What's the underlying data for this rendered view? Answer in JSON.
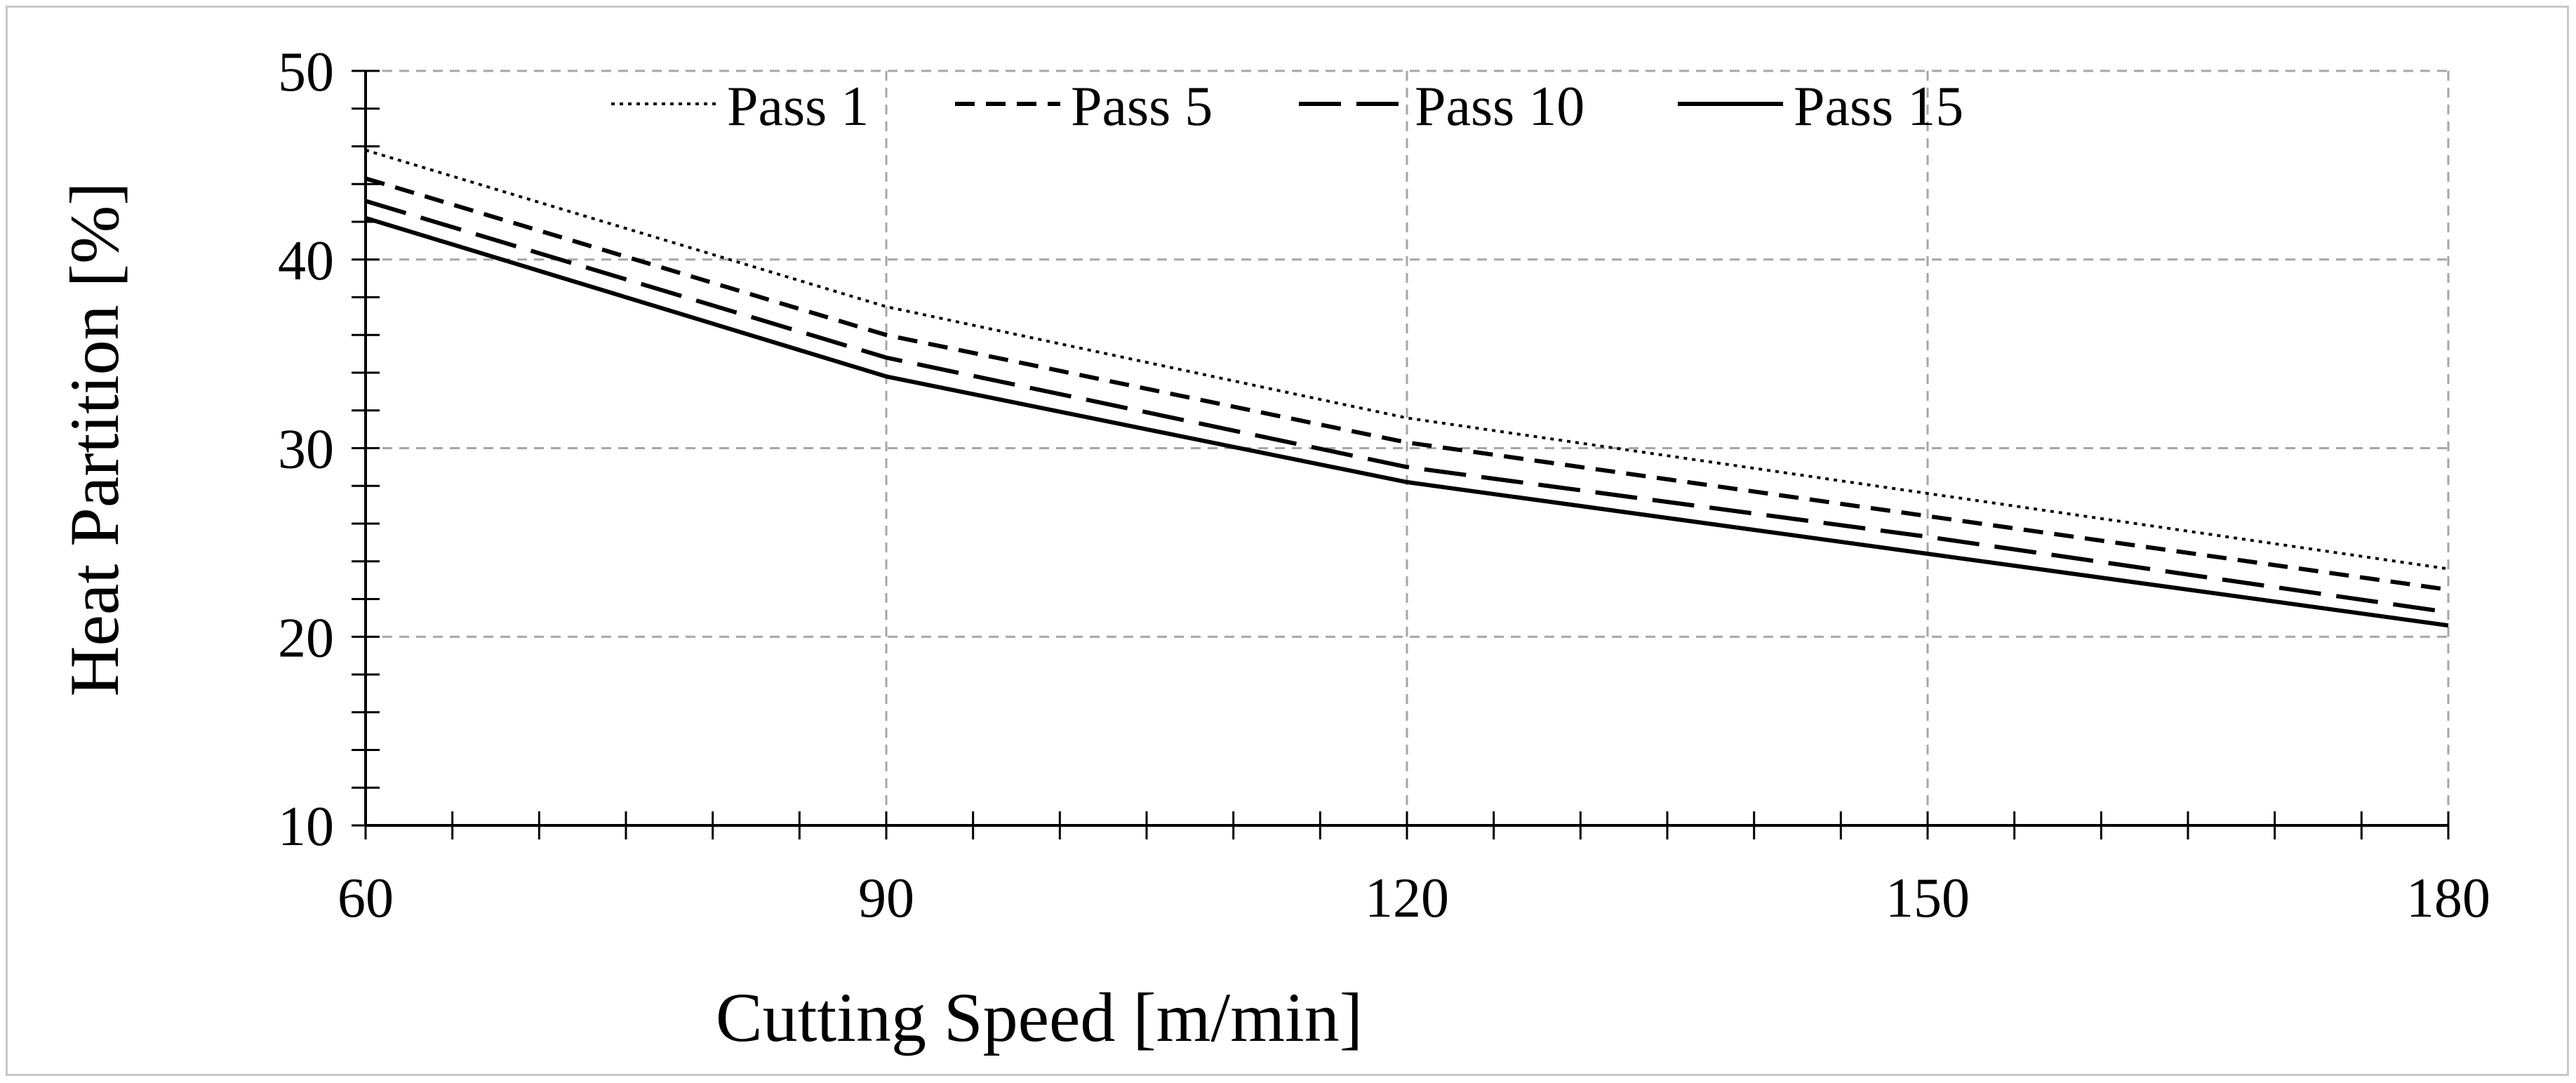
{
  "chart_data": {
    "type": "line",
    "title": "",
    "xlabel": "Cutting Speed [m/min]",
    "ylabel": "Heat Partition [%]",
    "xlim": [
      60,
      180
    ],
    "ylim": [
      10,
      50
    ],
    "x_ticks": [
      60,
      90,
      120,
      150,
      180
    ],
    "y_ticks": [
      10,
      20,
      30,
      40,
      50
    ],
    "x": [
      60,
      90,
      120,
      150,
      180
    ],
    "grid": true,
    "legend_position": "top",
    "series": [
      {
        "name": "Pass 1",
        "style": "dotted",
        "values": [
          45.8,
          37.5,
          31.6,
          27.6,
          23.6
        ]
      },
      {
        "name": "Pass 5",
        "style": "dashed",
        "values": [
          44.3,
          36.0,
          30.3,
          26.4,
          22.5
        ]
      },
      {
        "name": "Pass 10",
        "style": "long-dashed",
        "values": [
          43.1,
          34.8,
          29.0,
          25.3,
          21.3
        ]
      },
      {
        "name": "Pass 15",
        "style": "solid",
        "values": [
          42.2,
          33.8,
          28.2,
          24.4,
          20.6
        ]
      }
    ],
    "colors": {
      "line": "#000000",
      "grid": "#a6a6a6",
      "axis": "#000000"
    }
  }
}
